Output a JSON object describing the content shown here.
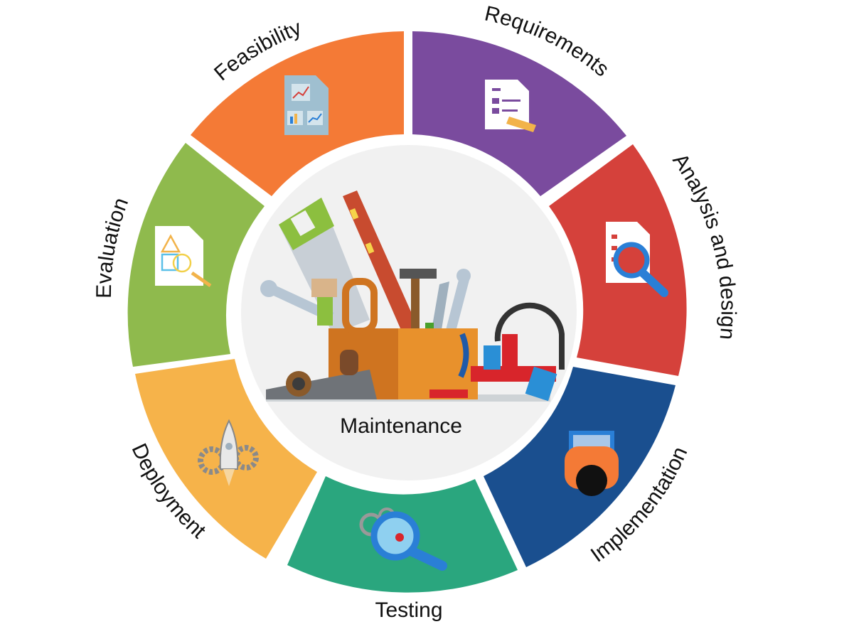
{
  "diagram": {
    "center_label": "Maintenance",
    "stages": [
      {
        "key": "requirements",
        "label": "Requirements",
        "color": "#7a4b9e",
        "icon": "document-pencil-icon"
      },
      {
        "key": "analysis",
        "label": "Analysis and design",
        "color": "#d5413b",
        "icon": "document-magnifier-icon"
      },
      {
        "key": "implementation",
        "label": "Implementation",
        "color": "#1a4f8f",
        "icon": "laptop-user-icon"
      },
      {
        "key": "testing",
        "label": "Testing",
        "color": "#2aa67e",
        "icon": "bug-magnifier-icon"
      },
      {
        "key": "deployment",
        "label": "Deployment",
        "color": "#f6b34a",
        "icon": "rocket-gears-icon"
      },
      {
        "key": "evaluation",
        "label": "Evaluation",
        "color": "#8fba4d",
        "icon": "shapes-document-icon"
      },
      {
        "key": "feasibility",
        "label": "Feasibility",
        "color": "#f47a36",
        "icon": "charts-document-icon"
      }
    ]
  }
}
